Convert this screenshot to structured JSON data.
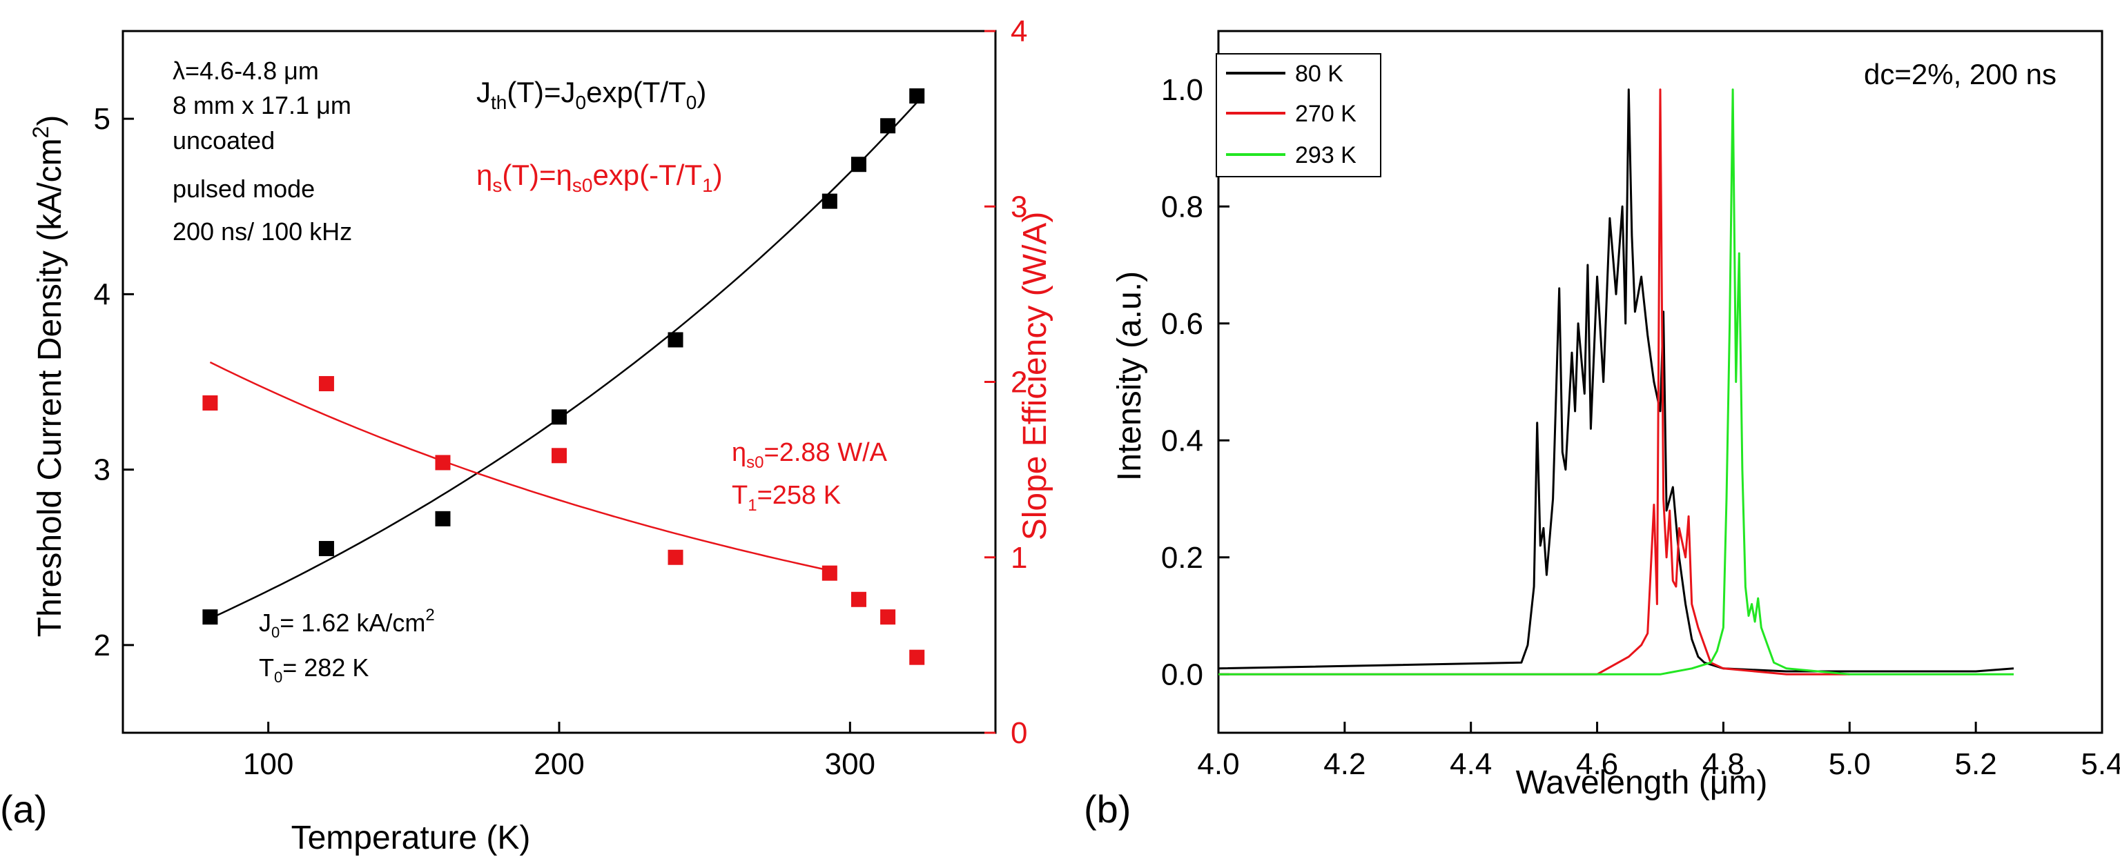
{
  "chart_data": [
    {
      "id": "a",
      "type": "scatter",
      "panel_label": "(a)",
      "xlabel": "Temperature (K)",
      "xlim": [
        50,
        350
      ],
      "xticks": [
        100,
        200,
        300
      ],
      "left_axis": {
        "label": "Threshold Current Density (kA/cm",
        "label_sup": "2",
        "label_end": ")",
        "ylim": [
          1.5,
          5.5
        ],
        "ticks": [
          2,
          3,
          4,
          5
        ],
        "color": "#000000"
      },
      "right_axis": {
        "label": "Slope Efficiency (W/A)",
        "ylim": [
          0,
          4
        ],
        "ticks": [
          0,
          1,
          2,
          3,
          4
        ],
        "color": "#e8141a"
      },
      "series": [
        {
          "name": "threshold current density",
          "axis": "left",
          "color": "#000000",
          "x": [
            80,
            120,
            160,
            200,
            240,
            293,
            303,
            313,
            323
          ],
          "y": [
            2.16,
            2.55,
            2.72,
            3.3,
            3.74,
            4.53,
            4.74,
            4.96,
            5.13
          ],
          "fit": {
            "model": "J0*exp(T/T0)",
            "J0": 1.62,
            "T0": 282,
            "xrange": [
              80,
              323
            ]
          }
        },
        {
          "name": "slope efficiency",
          "axis": "right",
          "color": "#e8141a",
          "x": [
            80,
            120,
            160,
            200,
            240,
            293,
            303,
            313,
            323
          ],
          "y": [
            1.88,
            1.99,
            1.54,
            1.58,
            1.0,
            0.91,
            0.76,
            0.66,
            0.43
          ],
          "fit": {
            "model": "eta_s0*exp(-T/T1)",
            "eta_s0": 2.88,
            "T1": 258,
            "xrange": [
              80,
              293
            ]
          }
        }
      ],
      "annotations": {
        "conditions": [
          "λ=4.6-4.8 μm",
          "8 mm x 17.1 μm",
          "uncoated",
          "pulsed mode",
          "200 ns/ 100 kHz"
        ],
        "formula_black": {
          "lhs": "J",
          "lhs_sub": "th",
          "rhs": "(T)=J",
          "rhs_sub": "0",
          "tail": "exp(T/T",
          "tail_sub": "0",
          "end": ")"
        },
        "formula_red": {
          "lhs": "η",
          "lhs_sub": "s",
          "rhs": "(T)=η",
          "rhs_sub": "s0",
          "tail": "exp(-T/T",
          "tail_sub": "1",
          "end": ")"
        },
        "fit_black_1": {
          "a": "J",
          "sub": "0",
          "b": "= 1.62 kA/cm",
          "sup": "2"
        },
        "fit_black_2": {
          "a": "T",
          "sub": "0",
          "b": "= 282 K"
        },
        "fit_red_1": {
          "a": "η",
          "sub": "s0",
          "b": "=2.88 W/A"
        },
        "fit_red_2": {
          "a": "T",
          "sub": "1",
          "b": "=258 K"
        }
      }
    },
    {
      "id": "b",
      "type": "line",
      "panel_label": "(b)",
      "xlabel": "Wavelength (μm)",
      "ylabel": "Intensity (a.u.)",
      "xlim": [
        4.0,
        5.4
      ],
      "ylim": [
        -0.1,
        1.1
      ],
      "xticks": [
        "4.0",
        "4.2",
        "4.4",
        "4.6",
        "4.8",
        "5.0",
        "5.2",
        "5.4"
      ],
      "yticks": [
        "0.0",
        "0.2",
        "0.4",
        "0.6",
        "0.8",
        "1.0"
      ],
      "annotation": "dc=2%, 200 ns",
      "legend_position": "top-left",
      "series": [
        {
          "name": "80 K",
          "color": "#000000",
          "x": [
            4.0,
            4.48,
            4.49,
            4.5,
            4.505,
            4.51,
            4.515,
            4.52,
            4.53,
            4.54,
            4.545,
            4.55,
            4.56,
            4.565,
            4.57,
            4.58,
            4.585,
            4.59,
            4.6,
            4.61,
            4.62,
            4.63,
            4.64,
            4.645,
            4.65,
            4.655,
            4.66,
            4.67,
            4.68,
            4.69,
            4.7,
            4.705,
            4.71,
            4.72,
            4.73,
            4.74,
            4.75,
            4.76,
            4.77,
            4.8,
            4.9,
            5.0,
            5.1,
            5.2,
            5.26
          ],
          "y": [
            0.01,
            0.02,
            0.05,
            0.15,
            0.43,
            0.22,
            0.25,
            0.17,
            0.3,
            0.66,
            0.38,
            0.35,
            0.55,
            0.45,
            0.6,
            0.48,
            0.7,
            0.42,
            0.68,
            0.5,
            0.78,
            0.65,
            0.8,
            0.6,
            1.0,
            0.75,
            0.62,
            0.68,
            0.58,
            0.5,
            0.45,
            0.62,
            0.28,
            0.32,
            0.2,
            0.12,
            0.06,
            0.03,
            0.02,
            0.01,
            0.005,
            0.005,
            0.005,
            0.005,
            0.01
          ]
        },
        {
          "name": "270 K",
          "color": "#e8141a",
          "x": [
            4.0,
            4.6,
            4.65,
            4.67,
            4.68,
            4.69,
            4.695,
            4.7,
            4.705,
            4.71,
            4.715,
            4.72,
            4.725,
            4.73,
            4.74,
            4.745,
            4.75,
            4.76,
            4.77,
            4.78,
            4.8,
            4.85,
            4.9,
            5.0
          ],
          "y": [
            0.0,
            0.0,
            0.03,
            0.05,
            0.07,
            0.29,
            0.12,
            1.0,
            0.3,
            0.2,
            0.28,
            0.16,
            0.15,
            0.25,
            0.2,
            0.27,
            0.12,
            0.08,
            0.05,
            0.02,
            0.01,
            0.005,
            0.0,
            0.0
          ]
        },
        {
          "name": "293 K",
          "color": "#22e622",
          "x": [
            4.0,
            4.7,
            4.75,
            4.78,
            4.79,
            4.8,
            4.805,
            4.81,
            4.815,
            4.82,
            4.825,
            4.83,
            4.835,
            4.84,
            4.845,
            4.85,
            4.855,
            4.86,
            4.87,
            4.88,
            4.9,
            5.0,
            5.26
          ],
          "y": [
            0.0,
            0.0,
            0.01,
            0.02,
            0.04,
            0.08,
            0.3,
            0.6,
            1.0,
            0.5,
            0.72,
            0.35,
            0.15,
            0.1,
            0.12,
            0.09,
            0.13,
            0.08,
            0.05,
            0.02,
            0.01,
            0.0,
            0.0
          ]
        }
      ]
    }
  ]
}
